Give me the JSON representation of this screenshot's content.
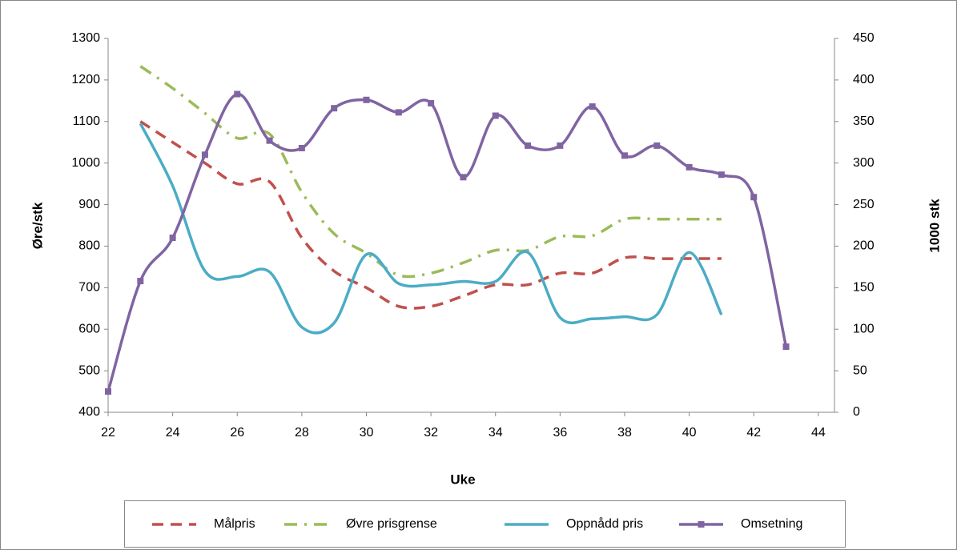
{
  "chart_data": {
    "type": "line",
    "y_label": "Øre/stk",
    "y2_label": "1000 stk",
    "x_label": "Uke",
    "xlim": [
      22,
      44.5
    ],
    "xticks": [
      22,
      24,
      26,
      28,
      30,
      32,
      34,
      36,
      38,
      40,
      42,
      44
    ],
    "ylim": [
      400,
      1300
    ],
    "yticks": [
      400,
      500,
      600,
      700,
      800,
      900,
      1000,
      1100,
      1200,
      1300
    ],
    "y2lim": [
      0,
      450
    ],
    "y2ticks": [
      0,
      50,
      100,
      150,
      200,
      250,
      300,
      350,
      400,
      450
    ],
    "smooth": true,
    "legend": "bottom",
    "series": [
      {
        "name": "Målpris",
        "color": "#c0504d",
        "line_style": "dashed",
        "x": [
          23,
          24,
          25,
          26,
          27,
          28,
          29,
          30,
          31,
          32,
          33,
          34,
          35,
          36,
          37,
          38,
          39,
          40,
          41
        ],
        "values": [
          1100,
          1050,
          1000,
          950,
          955,
          820,
          740,
          700,
          655,
          655,
          680,
          707,
          707,
          735,
          735,
          772,
          770,
          770,
          770
        ]
      },
      {
        "name": "Øvre prisgrense",
        "color": "#9bbb59",
        "line_style": "dash-dot",
        "x": [
          23,
          24,
          25,
          26,
          27,
          28,
          29,
          30,
          31,
          32,
          33,
          34,
          35,
          36,
          37,
          38,
          39,
          40,
          41
        ],
        "values": [
          1233,
          1180,
          1120,
          1060,
          1070,
          930,
          830,
          783,
          730,
          735,
          760,
          790,
          790,
          823,
          825,
          865,
          865,
          865,
          865
        ]
      },
      {
        "name": "Oppnådd pris",
        "color": "#4bacc6",
        "line_style": "solid",
        "x": [
          23,
          24,
          25,
          26,
          27,
          28,
          29,
          30,
          31,
          32,
          33,
          34,
          35,
          36,
          37,
          38,
          39,
          40,
          41
        ],
        "values": [
          1095,
          945,
          740,
          727,
          738,
          605,
          615,
          780,
          710,
          707,
          715,
          715,
          785,
          628,
          625,
          630,
          635,
          785,
          635
        ]
      },
      {
        "name": "Omsetning",
        "color": "#8064a2",
        "line_style": "solid",
        "marker": "square",
        "axis": "y2",
        "x": [
          22,
          23,
          24,
          25,
          26,
          27,
          28,
          29,
          30,
          31,
          32,
          33,
          34,
          35,
          36,
          37,
          38,
          39,
          40,
          41,
          42,
          43
        ],
        "values": [
          25,
          158,
          210,
          310,
          383,
          327,
          318,
          366,
          376,
          361,
          372,
          283,
          357,
          321,
          321,
          368,
          309,
          321,
          295,
          286,
          259,
          79
        ]
      }
    ]
  }
}
